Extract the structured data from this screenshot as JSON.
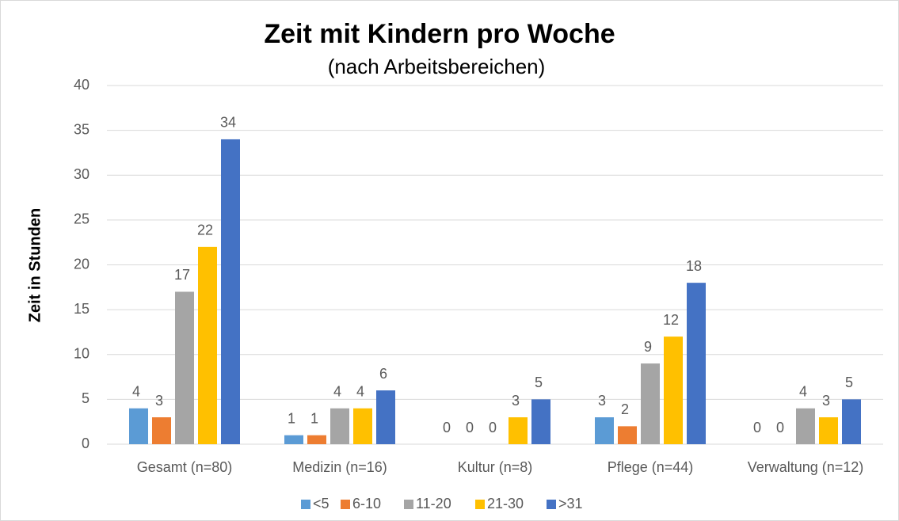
{
  "chart_data": {
    "type": "bar",
    "title": "Zeit mit Kindern pro Woche",
    "subtitle": "(nach Arbeitsbereichen)",
    "y_label": "Zeit in Stunden",
    "categories": [
      "Gesamt (n=80)",
      "Medizin (n=16)",
      "Kultur (n=8)",
      "Pflege (n=44)",
      "Verwaltung (n=12)"
    ],
    "series": [
      {
        "name": "<5",
        "color": "#5b9bd5",
        "values": [
          4,
          1,
          0,
          3,
          0
        ]
      },
      {
        "name": "6-10",
        "color": "#ed7d31",
        "values": [
          3,
          1,
          0,
          2,
          0
        ]
      },
      {
        "name": "11-20",
        "color": "#a5a5a5",
        "values": [
          17,
          4,
          0,
          9,
          4
        ]
      },
      {
        "name": "21-30",
        "color": "#ffc000",
        "values": [
          22,
          4,
          3,
          12,
          3
        ]
      },
      {
        "name": ">31",
        "color": "#4472c4",
        "values": [
          34,
          6,
          5,
          18,
          5
        ]
      }
    ],
    "ylim": [
      0,
      40
    ],
    "yticks": [
      0,
      5,
      10,
      15,
      20,
      25,
      30,
      35,
      40
    ],
    "grid": true,
    "legend": "bottom"
  }
}
